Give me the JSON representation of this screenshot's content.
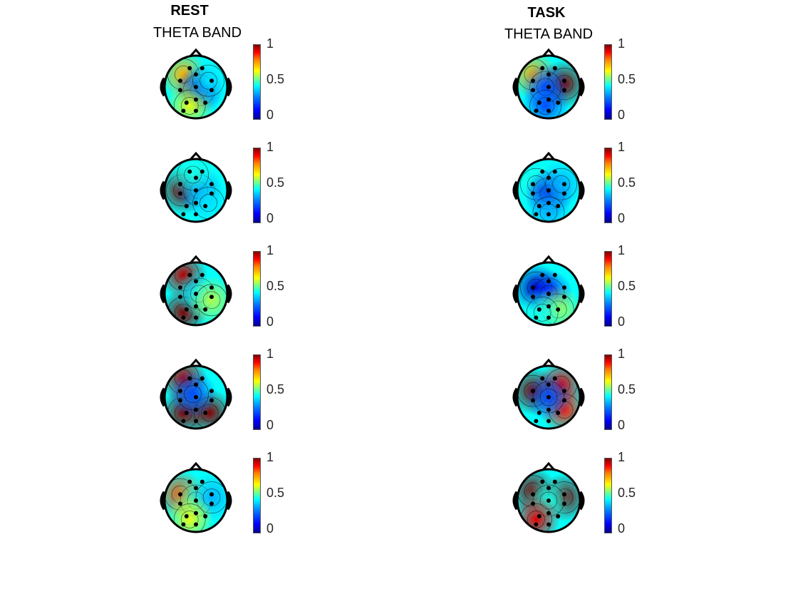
{
  "columns": [
    {
      "title": "REST",
      "subtitle": "THETA BAND"
    },
    {
      "title": "TASK",
      "subtitle": "THETA BAND"
    }
  ],
  "colorbar": {
    "ticks": [
      "1",
      "0.5",
      "0"
    ],
    "colormap": "jet",
    "range": [
      0,
      1
    ]
  },
  "colors": {
    "low": "#0000ff",
    "mid": "#00ffff",
    "high": "#ff0000",
    "outline": "#000000"
  },
  "maps": [
    [
      {
        "blobs": [
          [
            0.3,
            0.3,
            0.7
          ],
          [
            0.55,
            0.55,
            0.1
          ],
          [
            0.4,
            0.8,
            0.6
          ],
          [
            0.7,
            0.4,
            0.35
          ]
        ]
      },
      {
        "blobs": [
          [
            0.28,
            0.5,
            1.0
          ],
          [
            0.55,
            0.5,
            0.25
          ],
          [
            0.45,
            0.25,
            0.4
          ],
          [
            0.7,
            0.7,
            0.35
          ]
        ]
      },
      {
        "blobs": [
          [
            0.3,
            0.2,
            0.95
          ],
          [
            0.3,
            0.8,
            1.0
          ],
          [
            0.55,
            0.5,
            0.35
          ],
          [
            0.75,
            0.6,
            0.55
          ]
        ]
      },
      {
        "blobs": [
          [
            0.3,
            0.2,
            0.95
          ],
          [
            0.3,
            0.75,
            1.0
          ],
          [
            0.72,
            0.75,
            1.0
          ],
          [
            0.45,
            0.45,
            0.2
          ]
        ]
      },
      {
        "blobs": [
          [
            0.25,
            0.4,
            0.8
          ],
          [
            0.5,
            0.5,
            0.45
          ],
          [
            0.75,
            0.45,
            0.3
          ],
          [
            0.4,
            0.8,
            0.6
          ]
        ]
      }
    ],
    [
      {
        "blobs": [
          [
            0.25,
            0.3,
            0.7
          ],
          [
            0.75,
            0.45,
            1.0
          ],
          [
            0.45,
            0.5,
            0.2
          ],
          [
            0.45,
            0.8,
            0.2
          ]
        ]
      },
      {
        "blobs": [
          [
            0.3,
            0.4,
            0.4
          ],
          [
            0.5,
            0.55,
            0.1
          ],
          [
            0.7,
            0.4,
            0.3
          ],
          [
            0.5,
            0.85,
            0.3
          ]
        ]
      },
      {
        "blobs": [
          [
            0.3,
            0.4,
            0.05
          ],
          [
            0.5,
            0.5,
            0.15
          ],
          [
            0.65,
            0.75,
            0.55
          ],
          [
            0.4,
            0.8,
            0.4
          ]
        ]
      },
      {
        "blobs": [
          [
            0.25,
            0.4,
            1.0
          ],
          [
            0.7,
            0.3,
            0.9
          ],
          [
            0.75,
            0.7,
            0.85
          ],
          [
            0.5,
            0.5,
            0.2
          ]
        ]
      },
      {
        "blobs": [
          [
            0.25,
            0.35,
            1.0
          ],
          [
            0.75,
            0.45,
            1.0
          ],
          [
            0.5,
            0.5,
            0.4
          ],
          [
            0.3,
            0.8,
            0.9
          ]
        ]
      }
    ]
  ]
}
